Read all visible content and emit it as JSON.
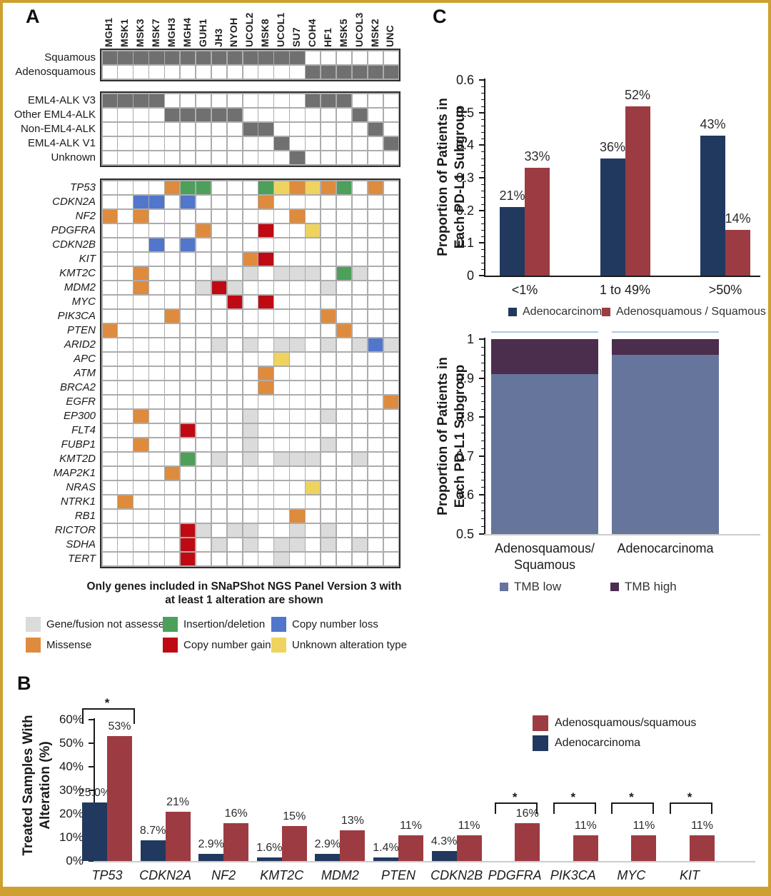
{
  "panels": {
    "a_label": "A",
    "b_label": "B",
    "c_label": "C"
  },
  "colors": {
    "gold_border": "#CEA02F",
    "navy": "#21395E",
    "dark_red": "#9D3B43",
    "missense": "#DE8B3E",
    "indel": "#4DA05A",
    "cngain": "#BF0A13",
    "cnloss": "#5276CC",
    "unknown": "#EED45E",
    "not_assessed": "#DBDBDB",
    "clinical_filled": "#707070",
    "tmb_low": "#66759B",
    "tmb_high": "#4B2D4E",
    "highlight_line": "#A9C7E9",
    "light_baseline": "#CCCCCC"
  },
  "panel_a": {
    "footnote": {
      "line1": "Only genes included in SNaPShot NGS Panel Version 3 with",
      "line2": "at least 1 alteration are shown"
    },
    "legend": [
      {
        "label": "Gene/fusion not assessed",
        "key": "not_assessed"
      },
      {
        "label": "Insertion/deletion",
        "key": "indel"
      },
      {
        "label": "Copy number loss",
        "key": "cnloss"
      },
      {
        "label": "Missense",
        "key": "missense"
      },
      {
        "label": "Copy number gain",
        "key": "cngain"
      },
      {
        "label": "Unknown alteration type",
        "key": "unknown"
      }
    ]
  },
  "chart_data": [
    {
      "type": "heatmap",
      "name": "oncoprint",
      "samples": [
        "MGH1",
        "MSK1",
        "MSK3",
        "MSK7",
        "MGH3",
        "MGH4",
        "GUH1",
        "JH3",
        "NYOH",
        "UCOL2",
        "MSK8",
        "UCOL1",
        "SU7",
        "COH4",
        "HF1",
        "MSK5",
        "UCOL3",
        "MSK2",
        "UNC"
      ],
      "clinical_rows": [
        {
          "label": "Squamous",
          "filled": [
            0,
            1,
            2,
            3,
            4,
            5,
            6,
            7,
            8,
            9,
            10,
            11,
            12
          ]
        },
        {
          "label": "Adenosquamous",
          "filled": [
            13,
            14,
            15,
            16,
            17,
            18
          ]
        }
      ],
      "fusion_rows": [
        {
          "label": "EML4-ALK V3",
          "filled": [
            0,
            1,
            2,
            3,
            13,
            14,
            15
          ]
        },
        {
          "label": "Other EML4-ALK",
          "filled": [
            4,
            5,
            6,
            7,
            8,
            16
          ]
        },
        {
          "label": "Non-EML4-ALK",
          "filled": [
            9,
            10,
            17
          ]
        },
        {
          "label": "EML4-ALK V1",
          "filled": [
            11,
            18
          ]
        },
        {
          "label": "Unknown",
          "filled": [
            12
          ]
        }
      ],
      "gene_rows": [
        {
          "gene": "TP53",
          "cells": {
            "4": "missense",
            "5": "indel",
            "6": "indel",
            "10": "indel",
            "11": "unknown",
            "12": "missense",
            "13": "unknown",
            "14": "missense",
            "15": "indel",
            "17": "missense"
          }
        },
        {
          "gene": "CDKN2A",
          "cells": {
            "2": "cnloss",
            "3": "cnloss",
            "5": "cnloss",
            "10": "missense"
          }
        },
        {
          "gene": "NF2",
          "cells": {
            "0": "missense",
            "2": "missense",
            "12": "missense"
          }
        },
        {
          "gene": "PDGFRA",
          "cells": {
            "6": "missense",
            "10": "cngain",
            "13": "unknown"
          }
        },
        {
          "gene": "CDKN2B",
          "cells": {
            "3": "cnloss",
            "5": "cnloss"
          }
        },
        {
          "gene": "KIT",
          "cells": {
            "9": "missense",
            "10": "cngain"
          }
        },
        {
          "gene": "KMT2C",
          "cells": {
            "2": "missense",
            "7": "na",
            "9": "na",
            "11": "na",
            "12": "na",
            "13": "na",
            "15": "indel",
            "16": "na"
          }
        },
        {
          "gene": "MDM2",
          "cells": {
            "2": "missense",
            "6": "na",
            "7": "cngain",
            "8": "na",
            "14": "na"
          }
        },
        {
          "gene": "MYC",
          "cells": {
            "8": "cngain",
            "10": "cngain"
          }
        },
        {
          "gene": "PIK3CA",
          "cells": {
            "4": "missense",
            "14": "missense"
          }
        },
        {
          "gene": "PTEN",
          "cells": {
            "0": "missense",
            "15": "missense"
          }
        },
        {
          "gene": "ARID2",
          "cells": {
            "7": "na",
            "9": "na",
            "11": "na",
            "12": "na",
            "14": "na",
            "16": "na",
            "17": "cnloss",
            "18": "na"
          }
        },
        {
          "gene": "APC",
          "cells": {
            "11": "unknown"
          }
        },
        {
          "gene": "ATM",
          "cells": {
            "10": "missense"
          }
        },
        {
          "gene": "BRCA2",
          "cells": {
            "10": "missense"
          }
        },
        {
          "gene": "EGFR",
          "cells": {
            "18": "missense"
          }
        },
        {
          "gene": "EP300",
          "cells": {
            "2": "missense",
            "9": "na",
            "14": "na"
          }
        },
        {
          "gene": "FLT4",
          "cells": {
            "5": "cngain",
            "9": "na"
          }
        },
        {
          "gene": "FUBP1",
          "cells": {
            "2": "missense",
            "9": "na",
            "14": "na"
          }
        },
        {
          "gene": "KMT2D",
          "cells": {
            "5": "indel",
            "7": "na",
            "9": "na",
            "11": "na",
            "12": "na",
            "13": "na",
            "16": "na"
          }
        },
        {
          "gene": "MAP2K1",
          "cells": {
            "4": "missense"
          }
        },
        {
          "gene": "NRAS",
          "cells": {
            "13": "unknown"
          }
        },
        {
          "gene": "NTRK1",
          "cells": {
            "1": "missense"
          }
        },
        {
          "gene": "RB1",
          "cells": {
            "12": "missense"
          }
        },
        {
          "gene": "RICTOR",
          "cells": {
            "5": "cngain",
            "6": "na",
            "8": "na",
            "9": "na",
            "12": "na",
            "14": "na"
          }
        },
        {
          "gene": "SDHA",
          "cells": {
            "5": "cngain",
            "7": "na",
            "9": "na",
            "11": "na",
            "12": "na",
            "14": "na",
            "16": "na"
          }
        },
        {
          "gene": "TERT",
          "cells": {
            "5": "cngain",
            "11": "na"
          }
        }
      ]
    },
    {
      "type": "bar",
      "name": "pdl1-grouped-bar",
      "categories": [
        "<1%",
        "1 to 49%",
        ">50%"
      ],
      "series": [
        {
          "name": "Adenocarcinoma",
          "color_key": "navy",
          "values": [
            0.21,
            0.36,
            0.43
          ],
          "labels": [
            "21%",
            "36%",
            "43%"
          ]
        },
        {
          "name": "Adenosquamous / Squamous",
          "color_key": "dark_red",
          "values": [
            0.33,
            0.52,
            0.14
          ],
          "labels": [
            "33%",
            "52%",
            "14%"
          ]
        }
      ],
      "ylabel_line1": "Proportion of Patients in",
      "ylabel_line2": "Each PD-L1 Subgroup",
      "yticks": [
        0,
        0.1,
        0.2,
        0.3,
        0.4,
        0.5,
        0.6
      ],
      "ytick_labels": [
        "0",
        "0.1",
        "0.2",
        "0.3",
        "0.4",
        "0.5",
        "0.6"
      ],
      "ylim": [
        0,
        0.6
      ],
      "legend_position": "bottom"
    },
    {
      "type": "stacked_bar",
      "name": "tmb-stacked-bar",
      "categories": [
        [
          "Adenosquamous/",
          "Squamous"
        ],
        [
          "Adenocarcinoma"
        ]
      ],
      "series": [
        {
          "name": "TMB low",
          "color_key": "tmb_low",
          "values": [
            0.91,
            0.96
          ]
        },
        {
          "name": "TMB high",
          "color_key": "tmb_high",
          "values": [
            0.09,
            0.04
          ]
        }
      ],
      "ylabel_line1": "Proportion of Patients in",
      "ylabel_line2": "Each PD-L1 Subgroup",
      "yticks": [
        0.5,
        0.6,
        0.7,
        0.8,
        0.9,
        1
      ],
      "ytick_labels": [
        "0.5",
        "0.6",
        "0.7",
        "0.8",
        "0.9",
        "1"
      ],
      "ylim": [
        0.5,
        1
      ],
      "legend_position": "bottom"
    },
    {
      "type": "bar",
      "name": "alteration-frequency-bar",
      "categories": [
        "TP53",
        "CDKN2A",
        "NF2",
        "KMT2C",
        "MDM2",
        "PTEN",
        "CDKN2B",
        "PDGFRA",
        "PIK3CA",
        "MYC",
        "KIT"
      ],
      "series": [
        {
          "name": "Adenocarcinoma",
          "color_key": "navy",
          "values": [
            25.0,
            8.7,
            2.9,
            1.6,
            2.9,
            1.4,
            4.3,
            0,
            0,
            0,
            0
          ],
          "labels": [
            "25.0%",
            "8.7%",
            "2.9%",
            "1.6%",
            "2.9%",
            "1.4%",
            "4.3%",
            "",
            "",
            "",
            ""
          ]
        },
        {
          "name": "Adenosquamous/squamous",
          "color_key": "dark_red",
          "values": [
            53,
            21,
            16,
            15,
            13,
            11,
            11,
            16,
            11,
            11,
            11
          ],
          "labels": [
            "53%",
            "21%",
            "16%",
            "15%",
            "13%",
            "11%",
            "11%",
            "16%",
            "11%",
            "11%",
            "11%"
          ]
        }
      ],
      "significant": [
        "TP53",
        "PDGFRA",
        "PIK3CA",
        "MYC",
        "KIT"
      ],
      "sig_marker": "*",
      "ylabel_line1": "Treated Samples With",
      "ylabel_line2": "Alteration (%)",
      "yticks": [
        0,
        10,
        20,
        30,
        40,
        50,
        60
      ],
      "ytick_labels": [
        "0%",
        "10%",
        "20%",
        "30%",
        "40%",
        "50%",
        "60%"
      ],
      "ylim": [
        0,
        60
      ],
      "legend_position": "right"
    }
  ]
}
